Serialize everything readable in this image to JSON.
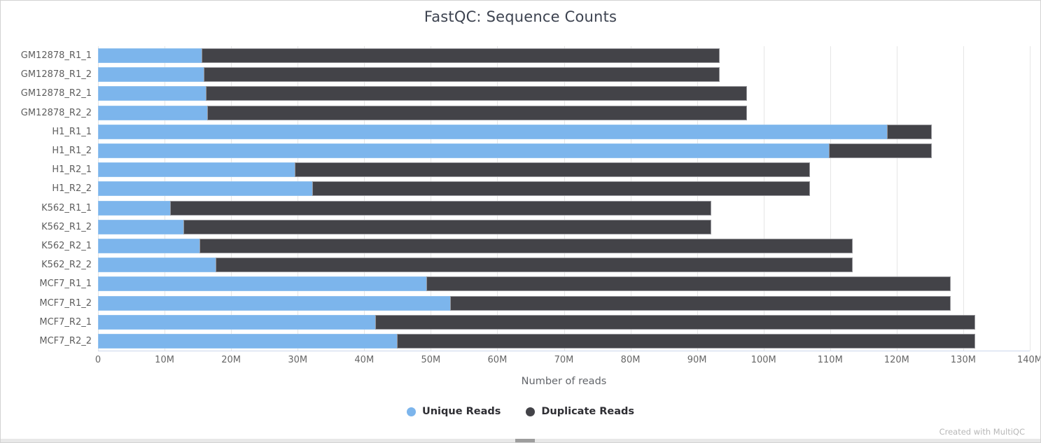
{
  "chart_data": {
    "type": "bar",
    "orientation": "horizontal",
    "stacked": true,
    "title": "FastQC: Sequence Counts",
    "xlabel": "Number of reads",
    "unit": "M",
    "xlim_millions": [
      0,
      140
    ],
    "x_ticks": [
      "0",
      "10M",
      "20M",
      "30M",
      "40M",
      "50M",
      "60M",
      "70M",
      "80M",
      "90M",
      "100M",
      "110M",
      "120M",
      "130M",
      "140M"
    ],
    "grid": true,
    "legend_position": "bottom",
    "categories": [
      "GM12878_R1_1",
      "GM12878_R1_2",
      "GM12878_R2_1",
      "GM12878_R2_2",
      "H1_R1_1",
      "H1_R1_2",
      "H1_R2_1",
      "H1_R2_2",
      "K562_R1_1",
      "K562_R1_2",
      "K562_R2_1",
      "K562_R2_2",
      "MCF7_R1_1",
      "MCF7_R1_2",
      "MCF7_R2_1",
      "MCF7_R2_2"
    ],
    "series": [
      {
        "name": "Unique Reads",
        "color": "#7cb5ec",
        "values_millions": [
          15.6,
          15.9,
          16.2,
          16.4,
          118.5,
          109.8,
          29.6,
          32.2,
          10.8,
          12.8,
          15.3,
          17.7,
          49.3,
          52.9,
          41.7,
          44.9
        ]
      },
      {
        "name": "Duplicate Reads",
        "color": "#434348",
        "values_millions": [
          77.8,
          77.5,
          81.3,
          81.1,
          6.8,
          15.5,
          77.4,
          74.8,
          81.3,
          79.3,
          98.1,
          95.7,
          78.8,
          75.2,
          90.1,
          86.9
        ]
      }
    ]
  },
  "footer": {
    "credit": "Created with MultiQC"
  },
  "colors": {
    "unique": "#7cb5ec",
    "duplicate": "#434348",
    "gridline": "#e6e6e6",
    "axis_line": "#ccd6eb",
    "title_text": "#3d4350",
    "tick_text": "#666666",
    "page_border": "#d2d2d2",
    "scroll_track": "#e8e8e8",
    "scroll_thumb": "#9d9d9d"
  }
}
